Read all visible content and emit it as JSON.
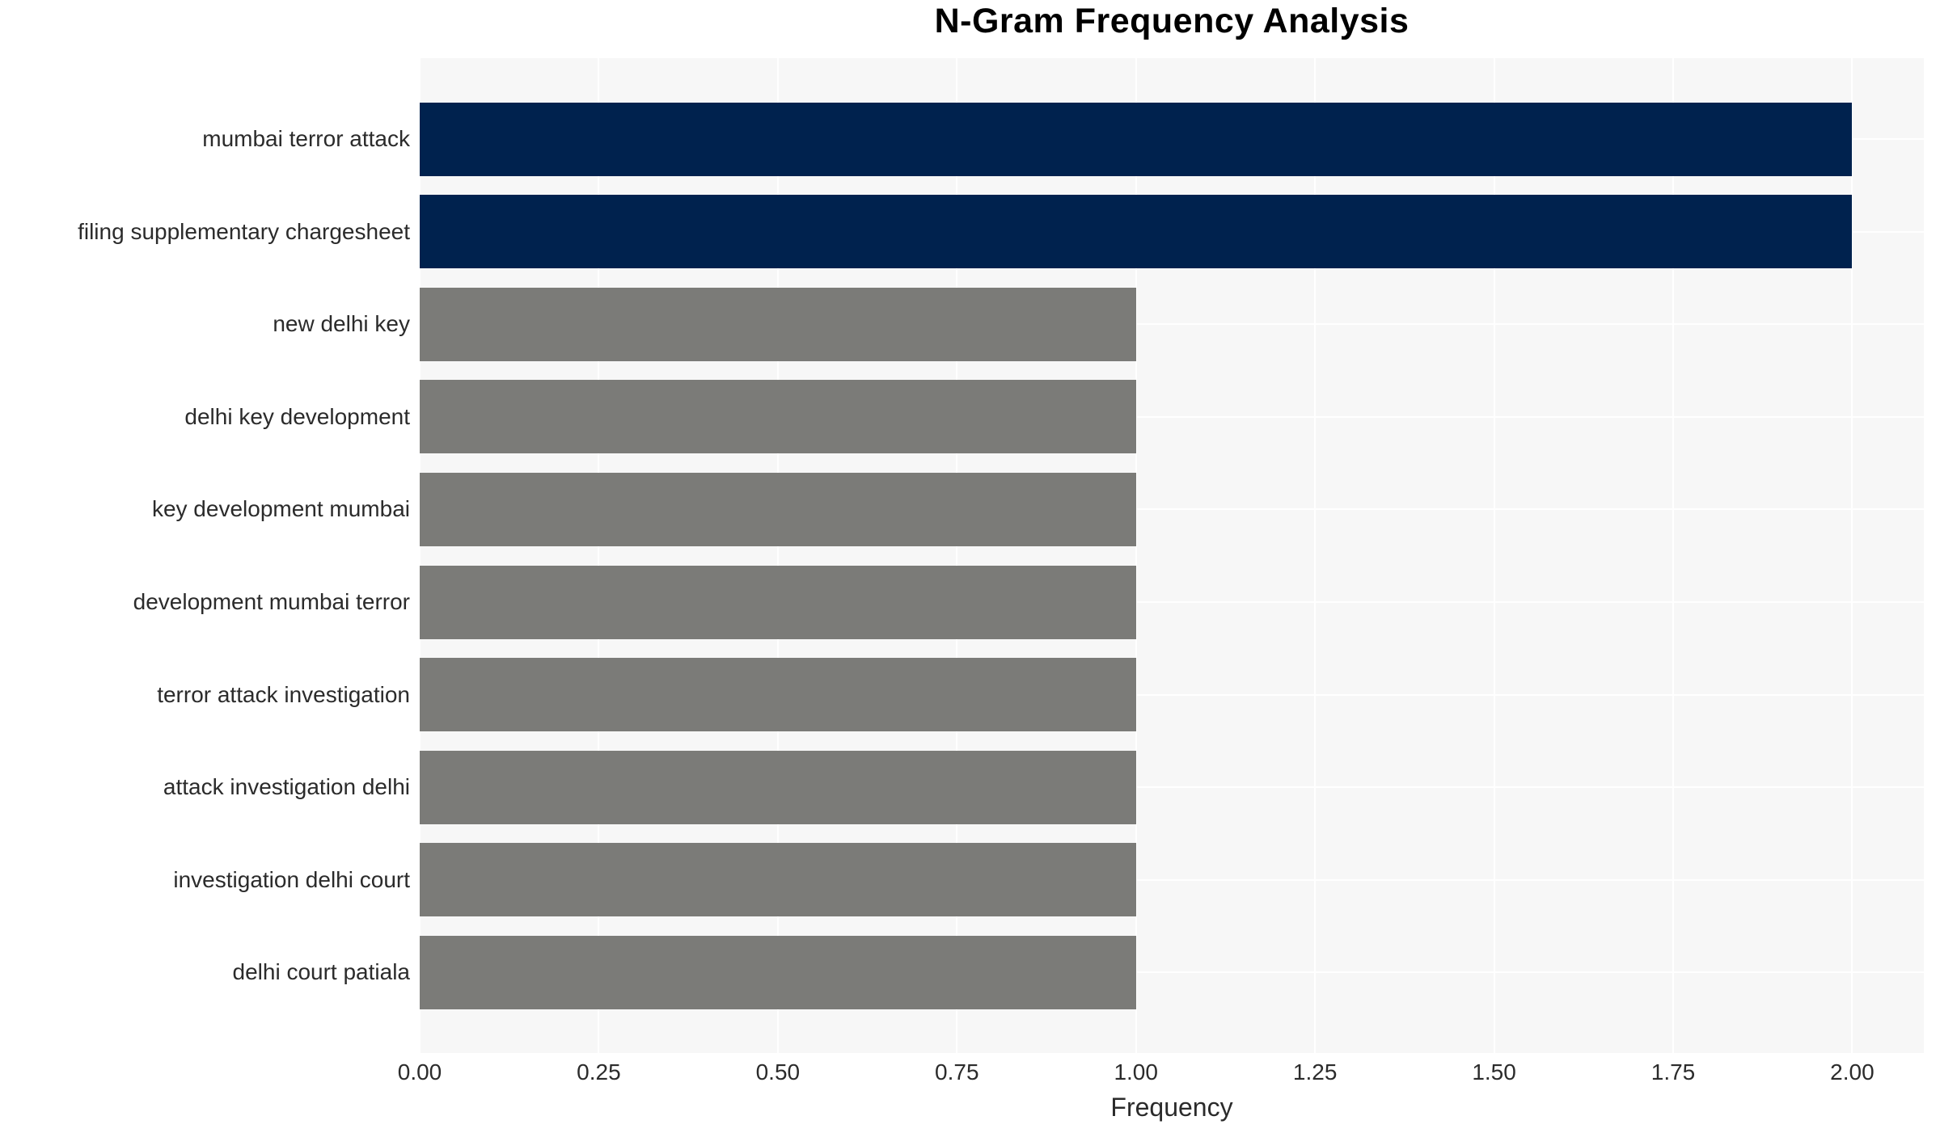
{
  "title": "N-Gram Frequency Analysis",
  "chart_data": {
    "type": "bar",
    "orientation": "horizontal",
    "title": "N-Gram Frequency Analysis",
    "xlabel": "Frequency",
    "ylabel": "",
    "categories": [
      "mumbai terror attack",
      "filing supplementary chargesheet",
      "new delhi key",
      "delhi key development",
      "key development mumbai",
      "development mumbai terror",
      "terror attack investigation",
      "attack investigation delhi",
      "investigation delhi court",
      "delhi court patiala"
    ],
    "values": [
      2,
      2,
      1,
      1,
      1,
      1,
      1,
      1,
      1,
      1
    ],
    "x_tick_values": [
      0,
      0.25,
      0.5,
      0.75,
      1.0,
      1.25,
      1.5,
      1.75,
      2.0
    ],
    "x_tick_labels": [
      "0.00",
      "0.25",
      "0.50",
      "0.75",
      "1.00",
      "1.25",
      "1.50",
      "1.75",
      "2.00"
    ],
    "xlim": [
      0,
      2.1
    ],
    "grid": true,
    "legend": false,
    "colors": {
      "bar_high": "#00224e",
      "bar_low": "#7b7b78",
      "plot_bg": "#f7f7f7",
      "grid": "#ffffff",
      "text": "#2b2b2b",
      "title": "#000000"
    }
  }
}
